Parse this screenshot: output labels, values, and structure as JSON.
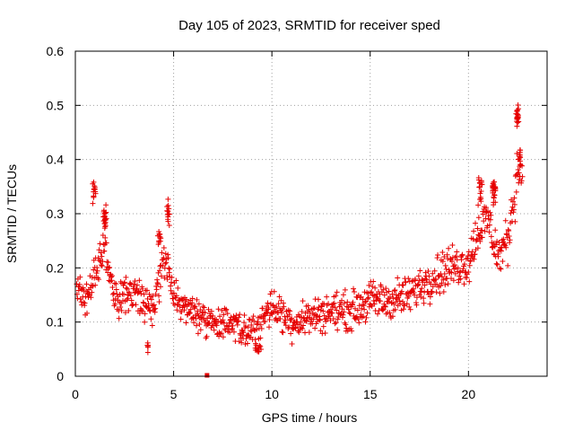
{
  "chart_data": {
    "type": "scatter",
    "title": "Day 105 of 2023, SRMTID for receiver sped",
    "xlabel": "GPS time / hours",
    "ylabel": "SRMTID / TECUs",
    "xlim": [
      0,
      24
    ],
    "ylim": [
      0,
      0.6
    ],
    "xticks": [
      0,
      5,
      10,
      15,
      20
    ],
    "yticks": [
      0,
      0.1,
      0.2,
      0.3,
      0.4,
      0.5,
      0.6
    ],
    "xtick_labels": [
      "0",
      "5",
      "10",
      "15",
      "20"
    ],
    "ytick_labels": [
      "0",
      "0.1",
      "0.2",
      "0.3",
      "0.4",
      "0.5",
      "0.6"
    ],
    "grid": true,
    "marker": "+",
    "color": "#e60000",
    "trend": {
      "description": "approximate mean SRMTID vs hour",
      "x": [
        0,
        0.5,
        1,
        1.5,
        2,
        3,
        4,
        4.5,
        5,
        6,
        7,
        8,
        9,
        10,
        11,
        12,
        13,
        14,
        15,
        16,
        17,
        18,
        19,
        20,
        20.5,
        21,
        21.5,
        22,
        22.5
      ],
      "y": [
        0.17,
        0.14,
        0.18,
        0.24,
        0.14,
        0.15,
        0.12,
        0.23,
        0.15,
        0.12,
        0.1,
        0.09,
        0.08,
        0.13,
        0.1,
        0.11,
        0.12,
        0.12,
        0.14,
        0.14,
        0.15,
        0.18,
        0.2,
        0.21,
        0.27,
        0.29,
        0.22,
        0.25,
        0.38
      ]
    },
    "clusters": [
      {
        "x": 0.95,
        "y": 0.34,
        "spread": [
          0.1,
          0.03
        ],
        "count": 14
      },
      {
        "x": 1.5,
        "y": 0.29,
        "spread": [
          0.15,
          0.04
        ],
        "count": 22
      },
      {
        "x": 4.7,
        "y": 0.3,
        "spread": [
          0.12,
          0.03
        ],
        "count": 14
      },
      {
        "x": 4.3,
        "y": 0.25,
        "spread": [
          0.15,
          0.03
        ],
        "count": 12
      },
      {
        "x": 20.6,
        "y": 0.34,
        "spread": [
          0.2,
          0.04
        ],
        "count": 18
      },
      {
        "x": 21.3,
        "y": 0.34,
        "spread": [
          0.15,
          0.03
        ],
        "count": 26
      },
      {
        "x": 22.5,
        "y": 0.48,
        "spread": [
          0.1,
          0.025
        ],
        "count": 22
      },
      {
        "x": 22.6,
        "y": 0.4,
        "spread": [
          0.1,
          0.03
        ],
        "count": 12
      },
      {
        "x": 3.7,
        "y": 0.05,
        "spread": [
          0.1,
          0.015
        ],
        "count": 6
      },
      {
        "x": 9.3,
        "y": 0.05,
        "spread": [
          0.4,
          0.01
        ],
        "count": 10
      }
    ],
    "special_point": {
      "x": 6.7,
      "y": 0.0,
      "marker": "square"
    }
  }
}
